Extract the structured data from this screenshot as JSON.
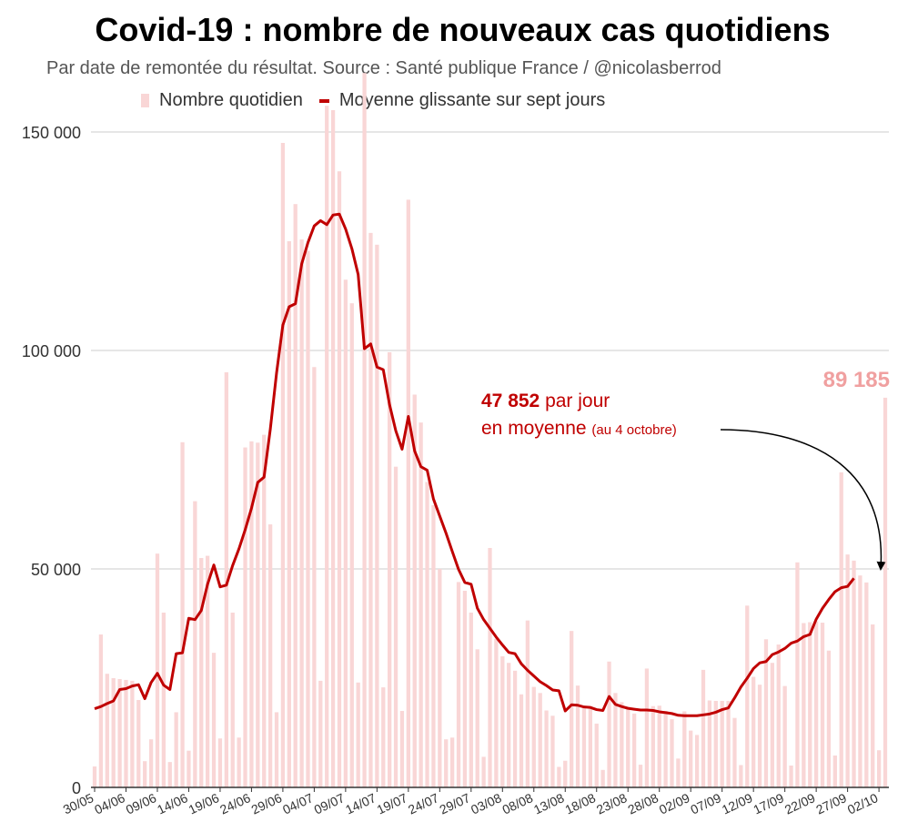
{
  "title": "Covid-19 : nombre de nouveaux cas quotidiens",
  "subtitle": "Par date de remontée du résultat. Source : Santé publique France / @nicolasberrod",
  "legend": {
    "bars": "Nombre quotidien",
    "line": "Moyenne glissante sur sept jours"
  },
  "annotation": {
    "value": "47 852",
    "text1": " par jour",
    "text2": "en moyenne ",
    "note": "(au 4 octobre)"
  },
  "last_value_label": "89 185",
  "colors": {
    "bars": "#f9d6d6",
    "line": "#c00000",
    "last_label": "#f0a0a0",
    "arrow": "#000000",
    "grid": "#cccccc"
  },
  "chart_data": {
    "type": "bar",
    "x_start": "30/05",
    "x_tick_labels": [
      "30/05",
      "04/06",
      "09/06",
      "14/06",
      "19/06",
      "24/06",
      "29/06",
      "04/07",
      "09/07",
      "14/07",
      "19/07",
      "24/07",
      "29/07",
      "03/08",
      "08/08",
      "13/08",
      "18/08",
      "23/08",
      "28/08",
      "02/09",
      "07/09",
      "12/09",
      "17/09",
      "22/09",
      "27/09",
      "02/10"
    ],
    "y_ticks": [
      0,
      50000,
      100000,
      150000
    ],
    "y_tick_labels": [
      "0",
      "50 000",
      "100 000",
      "150 000"
    ],
    "ylim": [
      0,
      150000
    ],
    "grid": true,
    "legend_position": "top",
    "series": [
      {
        "name": "Nombre quotidien",
        "type": "bar",
        "values": [
          4800,
          35000,
          26000,
          25000,
          24800,
          24600,
          24400,
          20000,
          6000,
          11000,
          53500,
          40000,
          5800,
          17200,
          79000,
          8400,
          65500,
          52500,
          53000,
          30800,
          11200,
          95000,
          40000,
          11400,
          77800,
          79200,
          78900,
          80700,
          60200,
          17200,
          147500,
          125000,
          133500,
          125400,
          122800,
          96200,
          24400,
          156000,
          155000,
          141000,
          116200,
          110800,
          24000,
          163500,
          126900,
          124200,
          22900,
          99600,
          73400,
          17500,
          134500,
          89900,
          83500,
          69900,
          64600,
          50000,
          11000,
          11400,
          47000,
          45000,
          40000,
          31600,
          7000,
          54800,
          34000,
          30000,
          28500,
          26700,
          21300,
          38200,
          23000,
          21600,
          17600,
          16400,
          4700,
          6100,
          35800,
          23300,
          18100,
          18600,
          14600,
          4000,
          28800,
          21600,
          19500,
          18400,
          16900,
          5200,
          27200,
          18600,
          18700,
          17500,
          15600,
          6600,
          17400,
          13000,
          12000,
          26900,
          19900,
          19800,
          19800,
          19800,
          15900,
          5100,
          41600,
          25300,
          23500,
          33900,
          28500,
          32700,
          23200,
          5000,
          51500,
          37600,
          37800,
          38000,
          37700,
          31300,
          7300,
          72100,
          53300,
          51900,
          48500,
          46900,
          37300,
          8500,
          89185
        ]
      },
      {
        "name": "Moyenne glissante sur sept jours",
        "type": "line",
        "values": [
          18000,
          18500,
          19200,
          19800,
          22400,
          22600,
          23200,
          23500,
          20300,
          24000,
          26100,
          23400,
          22400,
          30600,
          30800,
          38700,
          38400,
          40500,
          46500,
          50900,
          45900,
          46300,
          50800,
          54600,
          59000,
          63900,
          69800,
          71000,
          82000,
          94900,
          105800,
          110000,
          110700,
          119800,
          124700,
          128500,
          129700,
          128800,
          131000,
          131200,
          127800,
          123300,
          117400,
          100400,
          101500,
          96200,
          95600,
          87600,
          81600,
          77400,
          84900,
          77000,
          73400,
          72600,
          66000,
          62100,
          58200,
          54000,
          49900,
          46900,
          46500,
          41000,
          38400,
          36400,
          34400,
          32600,
          30900,
          30600,
          28300,
          26800,
          25500,
          24200,
          23300,
          22300,
          22100,
          17500,
          18900,
          18800,
          18400,
          18300,
          17800,
          17600,
          20800,
          19000,
          18500,
          18100,
          17900,
          17700,
          17700,
          17600,
          17300,
          17100,
          16900,
          16500,
          16400,
          16400,
          16400,
          16600,
          16800,
          17200,
          17800,
          18200,
          20500,
          23000,
          25000,
          27200,
          28500,
          28800,
          30400,
          31000,
          31800,
          33000,
          33500,
          34500,
          35000,
          38500,
          41000,
          43000,
          44800,
          45700,
          46000,
          47852
        ]
      }
    ]
  }
}
